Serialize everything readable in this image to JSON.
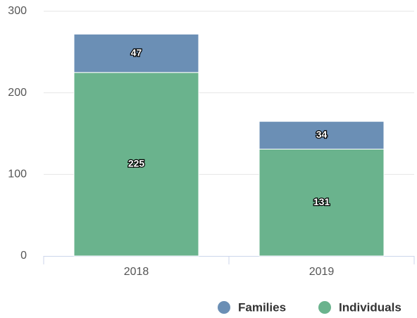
{
  "chart_data": {
    "type": "stacked-bar",
    "categories": [
      "2018",
      "2019"
    ],
    "series": [
      {
        "name": "Families",
        "color": "#6b8fb5",
        "values": [
          47,
          34
        ]
      },
      {
        "name": "Individuals",
        "color": "#6ab38d",
        "values": [
          225,
          131
        ]
      }
    ],
    "ylim": [
      0,
      300
    ],
    "yticks": [
      0,
      100,
      200,
      300
    ],
    "grid": true,
    "legend": "bottom-right"
  }
}
